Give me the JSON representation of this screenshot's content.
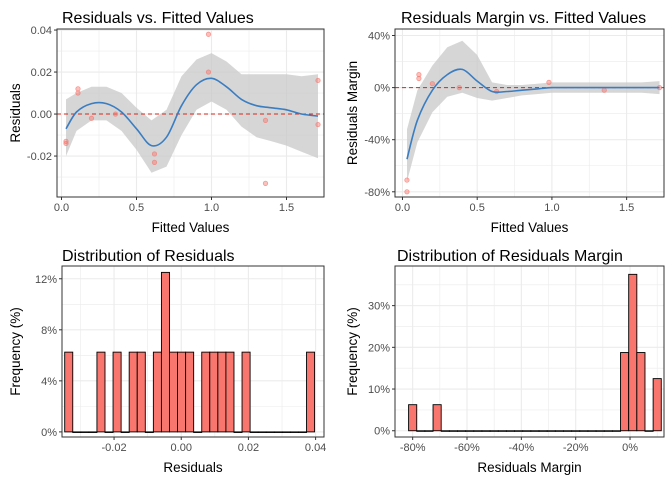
{
  "chart_data": [
    {
      "type": "scatter",
      "title": "Residuals vs. Fitted Values",
      "xlabel": "Fitted Values",
      "ylabel": "Residuals",
      "xlim": [
        -0.03,
        1.75
      ],
      "ylim": [
        -0.0395,
        0.0405
      ],
      "x_ticks": [
        0,
        0.5,
        1,
        1.5
      ],
      "x_tick_labels": [
        "0.0",
        "0.5",
        "1.0",
        "1.5"
      ],
      "y_ticks": [
        -0.02,
        0,
        0.02,
        0.04
      ],
      "y_tick_labels": [
        "-0.02",
        "0.00",
        "0.02",
        "0.04"
      ],
      "reference_line": 0,
      "points": [
        [
          0.03,
          -0.013
        ],
        [
          0.03,
          -0.014
        ],
        [
          0.11,
          0.012
        ],
        [
          0.11,
          0.01
        ],
        [
          0.2,
          -0.002
        ],
        [
          0.36,
          0.0
        ],
        [
          0.62,
          -0.019
        ],
        [
          0.62,
          -0.023
        ],
        [
          0.98,
          0.038
        ],
        [
          0.98,
          0.02
        ],
        [
          1.36,
          -0.003
        ],
        [
          1.36,
          -0.033
        ],
        [
          1.71,
          0.016
        ],
        [
          1.71,
          -0.005
        ]
      ],
      "smooth": {
        "x": [
          0.03,
          0.1,
          0.2,
          0.3,
          0.4,
          0.5,
          0.6,
          0.7,
          0.8,
          0.9,
          1.0,
          1.1,
          1.2,
          1.3,
          1.4,
          1.5,
          1.6,
          1.71
        ],
        "y": [
          -0.007,
          0.001,
          0.005,
          0.005,
          0.001,
          -0.007,
          -0.015,
          -0.011,
          0.004,
          0.014,
          0.017,
          0.013,
          0.007,
          0.004,
          0.003,
          0.002,
          0.0,
          -0.001
        ],
        "lower": [
          -0.02,
          -0.008,
          -0.003,
          -0.003,
          -0.008,
          -0.017,
          -0.028,
          -0.025,
          -0.01,
          0.002,
          0.006,
          0.002,
          -0.006,
          -0.011,
          -0.013,
          -0.015,
          -0.018,
          -0.021
        ],
        "upper": [
          0.007,
          0.01,
          0.013,
          0.013,
          0.01,
          0.003,
          -0.003,
          0.002,
          0.018,
          0.026,
          0.029,
          0.025,
          0.019,
          0.019,
          0.019,
          0.019,
          0.018,
          0.019
        ]
      }
    },
    {
      "type": "scatter",
      "title": "Residuals Margin vs. Fitted Values",
      "xlabel": "Fitted Values",
      "ylabel": "Residuals Margin",
      "xlim": [
        -0.05,
        1.75
      ],
      "ylim": [
        -0.84,
        0.45
      ],
      "x_ticks": [
        0,
        0.5,
        1,
        1.5
      ],
      "x_tick_labels": [
        "0.0",
        "0.5",
        "1.0",
        "1.5"
      ],
      "y_ticks": [
        -0.8,
        -0.4,
        0,
        0.4
      ],
      "y_tick_labels": [
        "-80%",
        "-40%",
        "0%",
        "40%"
      ],
      "reference_line": 0,
      "points": [
        [
          0.03,
          -0.8
        ],
        [
          0.03,
          -0.71
        ],
        [
          0.11,
          0.1
        ],
        [
          0.11,
          0.07
        ],
        [
          0.2,
          0.03
        ],
        [
          0.38,
          0.0
        ],
        [
          0.63,
          -0.03
        ],
        [
          0.98,
          0.04
        ],
        [
          1.35,
          -0.02
        ],
        [
          1.72,
          0.0
        ]
      ],
      "smooth": {
        "x": [
          0.03,
          0.1,
          0.2,
          0.3,
          0.4,
          0.5,
          0.6,
          0.7,
          0.8,
          0.9,
          1.0,
          1.1,
          1.2,
          1.3,
          1.4,
          1.5,
          1.6,
          1.72
        ],
        "y": [
          -0.55,
          -0.25,
          -0.02,
          0.1,
          0.14,
          0.05,
          -0.03,
          -0.03,
          -0.02,
          -0.01,
          0.0,
          0.0,
          0.0,
          0.0,
          0.0,
          0.0,
          0.0,
          0.0
        ],
        "lower": [
          -0.72,
          -0.42,
          -0.19,
          -0.07,
          -0.04,
          -0.08,
          -0.1,
          -0.08,
          -0.06,
          -0.05,
          -0.04,
          -0.04,
          -0.04,
          -0.04,
          -0.04,
          -0.04,
          -0.04,
          -0.05
        ],
        "upper": [
          -0.32,
          -0.02,
          0.17,
          0.31,
          0.36,
          0.25,
          0.04,
          0.02,
          0.02,
          0.03,
          0.04,
          0.04,
          0.04,
          0.04,
          0.04,
          0.04,
          0.04,
          0.05
        ]
      }
    },
    {
      "type": "bar",
      "title": "Distribution of Residuals",
      "xlabel": "Residuals",
      "ylabel": "Frequency (%)",
      "xlim": [
        -0.0355,
        0.0425
      ],
      "ylim": [
        -0.004,
        0.13
      ],
      "x_ticks": [
        -0.02,
        0,
        0.02,
        0.04
      ],
      "x_tick_labels": [
        "-0.02",
        "0.00",
        "0.02",
        "0.04"
      ],
      "y_ticks": [
        0,
        0.04,
        0.08,
        0.12
      ],
      "y_tick_labels": [
        "0%",
        "4%",
        "8%",
        "12%"
      ],
      "bin_width": 0.0024,
      "bins": [
        [
          -0.0335,
          0.0625
        ],
        [
          -0.0311,
          0
        ],
        [
          -0.0287,
          0
        ],
        [
          -0.0263,
          0
        ],
        [
          -0.0239,
          0.0625
        ],
        [
          -0.0215,
          0
        ],
        [
          -0.0191,
          0.0625
        ],
        [
          -0.0167,
          0
        ],
        [
          -0.0143,
          0.0625
        ],
        [
          -0.0119,
          0.0625
        ],
        [
          -0.0095,
          0
        ],
        [
          -0.0071,
          0.0625
        ],
        [
          -0.0047,
          0.125
        ],
        [
          -0.0023,
          0.0625
        ],
        [
          0.0001,
          0.0625
        ],
        [
          0.0025,
          0.0625
        ],
        [
          0.0049,
          0
        ],
        [
          0.0073,
          0.0625
        ],
        [
          0.0097,
          0.0625
        ],
        [
          0.0121,
          0.0625
        ],
        [
          0.0145,
          0.0625
        ],
        [
          0.0169,
          0
        ],
        [
          0.0193,
          0.0625
        ],
        [
          0.0217,
          0
        ],
        [
          0.0241,
          0
        ],
        [
          0.0265,
          0
        ],
        [
          0.0289,
          0
        ],
        [
          0.0313,
          0
        ],
        [
          0.0337,
          0
        ],
        [
          0.0361,
          0
        ],
        [
          0.0385,
          0.0625
        ]
      ]
    },
    {
      "type": "bar",
      "title": "Distribution of Residuals Margin",
      "xlabel": "Residuals Margin",
      "ylabel": "Frequency (%)",
      "xlim": [
        -0.865,
        0.125
      ],
      "ylim": [
        -0.015,
        0.395
      ],
      "x_ticks": [
        -0.8,
        -0.6,
        -0.4,
        -0.2,
        0
      ],
      "x_tick_labels": [
        "-80%",
        "-60%",
        "-40%",
        "-20%",
        "0%"
      ],
      "y_ticks": [
        0,
        0.1,
        0.2,
        0.3
      ],
      "y_tick_labels": [
        "0%",
        "10%",
        "20%",
        "30%"
      ],
      "bin_width": 0.03,
      "bins": [
        [
          -0.8,
          0.0625
        ],
        [
          -0.77,
          0
        ],
        [
          -0.74,
          0
        ],
        [
          -0.71,
          0.0625
        ],
        [
          -0.68,
          0
        ],
        [
          -0.65,
          0
        ],
        [
          -0.62,
          0
        ],
        [
          -0.59,
          0
        ],
        [
          -0.56,
          0
        ],
        [
          -0.53,
          0
        ],
        [
          -0.5,
          0
        ],
        [
          -0.47,
          0
        ],
        [
          -0.44,
          0
        ],
        [
          -0.41,
          0
        ],
        [
          -0.38,
          0
        ],
        [
          -0.35,
          0
        ],
        [
          -0.32,
          0
        ],
        [
          -0.29,
          0
        ],
        [
          -0.26,
          0
        ],
        [
          -0.23,
          0
        ],
        [
          -0.2,
          0
        ],
        [
          -0.17,
          0
        ],
        [
          -0.14,
          0
        ],
        [
          -0.11,
          0
        ],
        [
          -0.08,
          0
        ],
        [
          -0.05,
          0
        ],
        [
          -0.02,
          0.1875
        ],
        [
          0.01,
          0.375
        ],
        [
          0.04,
          0.1875
        ],
        [
          0.07,
          0
        ],
        [
          0.1,
          0.125
        ]
      ]
    }
  ],
  "colors": {
    "point": "#f8766d",
    "smooth_line": "#3a7dc1",
    "ribbon": "#c8c8c8",
    "reference_line": "#d7261e",
    "bar_fill": "#f8766d",
    "bar_stroke": "#000000",
    "grid": "#ebebeb",
    "panel_border": "#333333"
  }
}
